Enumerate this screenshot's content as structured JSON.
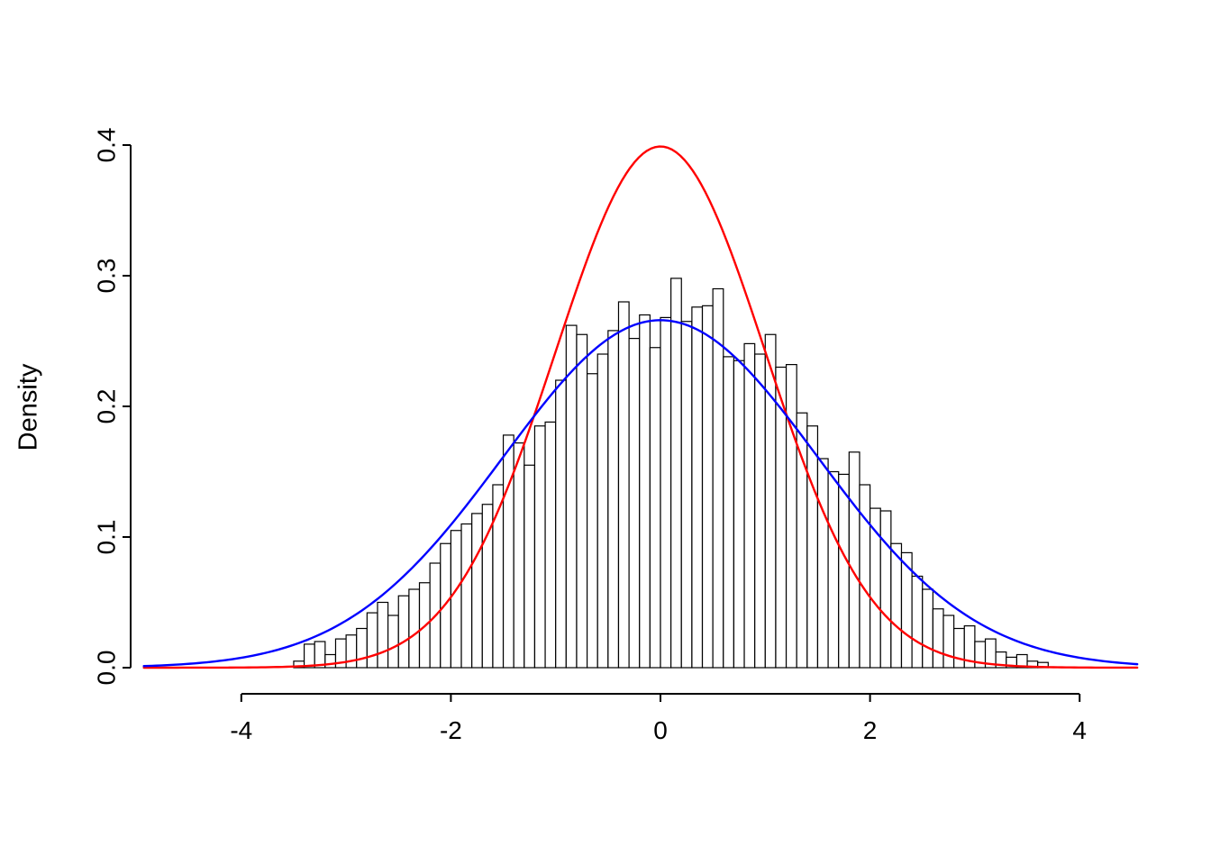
{
  "figure": {
    "background": "#ffffff"
  },
  "chart_data": {
    "type": "bar",
    "subtype": "histogram-with-density-curves",
    "title": "",
    "xlabel": "",
    "ylabel": "Density",
    "xlim": [
      -4.93,
      4.58
    ],
    "ylim": [
      0,
      0.4
    ],
    "grid": false,
    "x_tick_values": [
      -4,
      -2,
      0,
      2,
      4
    ],
    "x_tick_labels": [
      "-4",
      "-2",
      "0",
      "2",
      "4"
    ],
    "y_tick_values": [
      0.0,
      0.1,
      0.2,
      0.3,
      0.4
    ],
    "y_tick_labels": [
      "0.0",
      "0.1",
      "0.2",
      "0.3",
      "0.4"
    ],
    "bar_fill": "#ffffff",
    "bar_stroke": "#000000",
    "bins_start": -3.5,
    "bin_width": 0.1,
    "bar_heights": [
      0.005,
      0.018,
      0.02,
      0.01,
      0.022,
      0.025,
      0.03,
      0.042,
      0.05,
      0.04,
      0.055,
      0.06,
      0.065,
      0.08,
      0.095,
      0.105,
      0.11,
      0.118,
      0.125,
      0.14,
      0.178,
      0.172,
      0.155,
      0.185,
      0.188,
      0.22,
      0.262,
      0.255,
      0.225,
      0.24,
      0.258,
      0.28,
      0.252,
      0.27,
      0.245,
      0.268,
      0.298,
      0.265,
      0.276,
      0.277,
      0.29,
      0.238,
      0.235,
      0.248,
      0.24,
      0.255,
      0.23,
      0.232,
      0.195,
      0.185,
      0.16,
      0.15,
      0.148,
      0.165,
      0.14,
      0.122,
      0.12,
      0.095,
      0.088,
      0.07,
      0.06,
      0.045,
      0.04,
      0.03,
      0.032,
      0.02,
      0.022,
      0.012,
      0.008,
      0.01,
      0.005,
      0.004
    ],
    "curves": [
      {
        "name": "normal-density-sd-1",
        "color": "#ff0000",
        "mean": 0,
        "sd": 1.0,
        "peak": 0.399
      },
      {
        "name": "normal-density-sd-1.5",
        "color": "#0000ff",
        "mean": 0,
        "sd": 1.5,
        "peak": 0.266
      }
    ]
  }
}
